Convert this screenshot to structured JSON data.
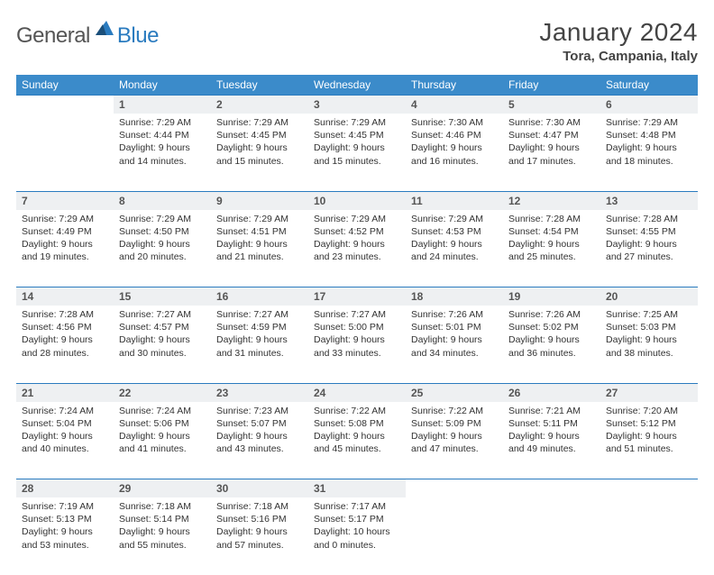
{
  "brand": {
    "general": "General",
    "blue": "Blue"
  },
  "title": "January 2024",
  "location": "Tora, Campania, Italy",
  "theme": {
    "header_bg": "#3b8bca",
    "header_fg": "#ffffff",
    "daynum_bg": "#eef0f2",
    "border": "#2a7bbf",
    "text": "#333333"
  },
  "weekdays": [
    "Sunday",
    "Monday",
    "Tuesday",
    "Wednesday",
    "Thursday",
    "Friday",
    "Saturday"
  ],
  "weeks": [
    [
      null,
      {
        "n": "1",
        "sr": "7:29 AM",
        "ss": "4:44 PM",
        "dl": "9 hours and 14 minutes."
      },
      {
        "n": "2",
        "sr": "7:29 AM",
        "ss": "4:45 PM",
        "dl": "9 hours and 15 minutes."
      },
      {
        "n": "3",
        "sr": "7:29 AM",
        "ss": "4:45 PM",
        "dl": "9 hours and 15 minutes."
      },
      {
        "n": "4",
        "sr": "7:30 AM",
        "ss": "4:46 PM",
        "dl": "9 hours and 16 minutes."
      },
      {
        "n": "5",
        "sr": "7:30 AM",
        "ss": "4:47 PM",
        "dl": "9 hours and 17 minutes."
      },
      {
        "n": "6",
        "sr": "7:29 AM",
        "ss": "4:48 PM",
        "dl": "9 hours and 18 minutes."
      }
    ],
    [
      {
        "n": "7",
        "sr": "7:29 AM",
        "ss": "4:49 PM",
        "dl": "9 hours and 19 minutes."
      },
      {
        "n": "8",
        "sr": "7:29 AM",
        "ss": "4:50 PM",
        "dl": "9 hours and 20 minutes."
      },
      {
        "n": "9",
        "sr": "7:29 AM",
        "ss": "4:51 PM",
        "dl": "9 hours and 21 minutes."
      },
      {
        "n": "10",
        "sr": "7:29 AM",
        "ss": "4:52 PM",
        "dl": "9 hours and 23 minutes."
      },
      {
        "n": "11",
        "sr": "7:29 AM",
        "ss": "4:53 PM",
        "dl": "9 hours and 24 minutes."
      },
      {
        "n": "12",
        "sr": "7:28 AM",
        "ss": "4:54 PM",
        "dl": "9 hours and 25 minutes."
      },
      {
        "n": "13",
        "sr": "7:28 AM",
        "ss": "4:55 PM",
        "dl": "9 hours and 27 minutes."
      }
    ],
    [
      {
        "n": "14",
        "sr": "7:28 AM",
        "ss": "4:56 PM",
        "dl": "9 hours and 28 minutes."
      },
      {
        "n": "15",
        "sr": "7:27 AM",
        "ss": "4:57 PM",
        "dl": "9 hours and 30 minutes."
      },
      {
        "n": "16",
        "sr": "7:27 AM",
        "ss": "4:59 PM",
        "dl": "9 hours and 31 minutes."
      },
      {
        "n": "17",
        "sr": "7:27 AM",
        "ss": "5:00 PM",
        "dl": "9 hours and 33 minutes."
      },
      {
        "n": "18",
        "sr": "7:26 AM",
        "ss": "5:01 PM",
        "dl": "9 hours and 34 minutes."
      },
      {
        "n": "19",
        "sr": "7:26 AM",
        "ss": "5:02 PM",
        "dl": "9 hours and 36 minutes."
      },
      {
        "n": "20",
        "sr": "7:25 AM",
        "ss": "5:03 PM",
        "dl": "9 hours and 38 minutes."
      }
    ],
    [
      {
        "n": "21",
        "sr": "7:24 AM",
        "ss": "5:04 PM",
        "dl": "9 hours and 40 minutes."
      },
      {
        "n": "22",
        "sr": "7:24 AM",
        "ss": "5:06 PM",
        "dl": "9 hours and 41 minutes."
      },
      {
        "n": "23",
        "sr": "7:23 AM",
        "ss": "5:07 PM",
        "dl": "9 hours and 43 minutes."
      },
      {
        "n": "24",
        "sr": "7:22 AM",
        "ss": "5:08 PM",
        "dl": "9 hours and 45 minutes."
      },
      {
        "n": "25",
        "sr": "7:22 AM",
        "ss": "5:09 PM",
        "dl": "9 hours and 47 minutes."
      },
      {
        "n": "26",
        "sr": "7:21 AM",
        "ss": "5:11 PM",
        "dl": "9 hours and 49 minutes."
      },
      {
        "n": "27",
        "sr": "7:20 AM",
        "ss": "5:12 PM",
        "dl": "9 hours and 51 minutes."
      }
    ],
    [
      {
        "n": "28",
        "sr": "7:19 AM",
        "ss": "5:13 PM",
        "dl": "9 hours and 53 minutes."
      },
      {
        "n": "29",
        "sr": "7:18 AM",
        "ss": "5:14 PM",
        "dl": "9 hours and 55 minutes."
      },
      {
        "n": "30",
        "sr": "7:18 AM",
        "ss": "5:16 PM",
        "dl": "9 hours and 57 minutes."
      },
      {
        "n": "31",
        "sr": "7:17 AM",
        "ss": "5:17 PM",
        "dl": "10 hours and 0 minutes."
      },
      null,
      null,
      null
    ]
  ],
  "labels": {
    "sunrise": "Sunrise: ",
    "sunset": "Sunset: ",
    "daylight": "Daylight: "
  }
}
